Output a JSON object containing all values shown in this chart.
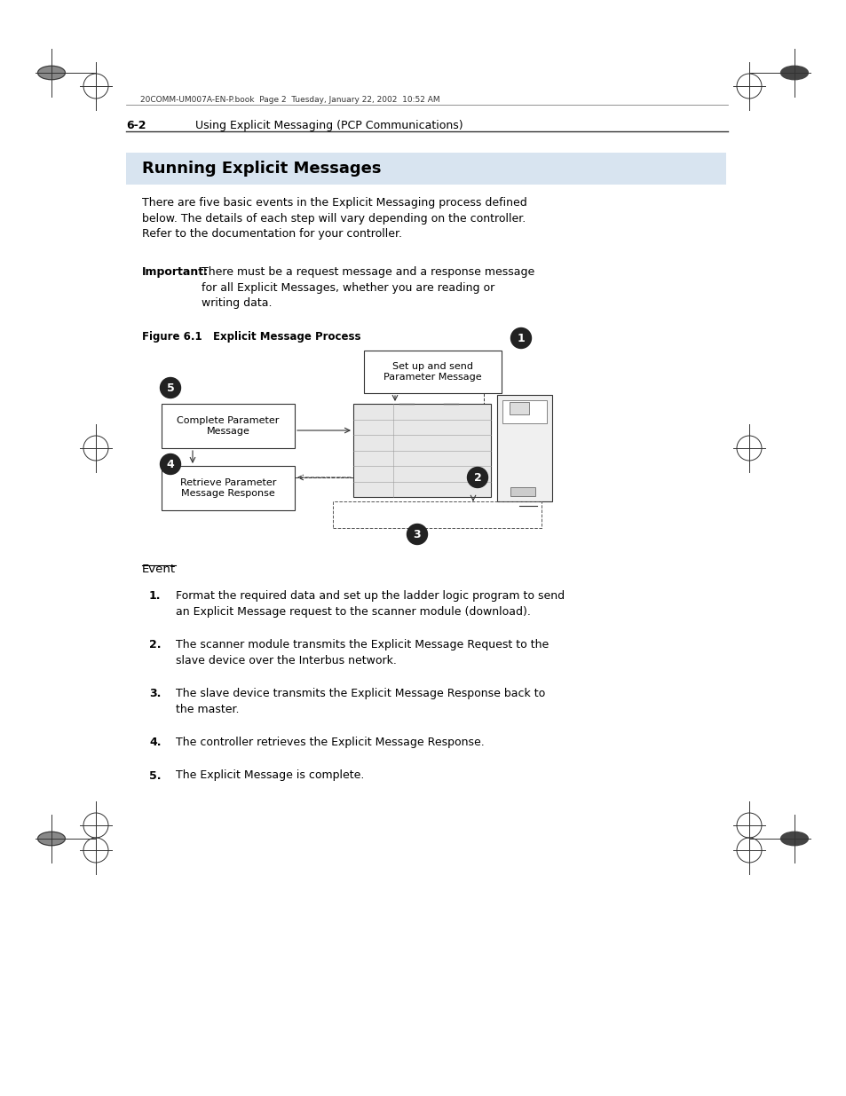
{
  "bg_color": "#ffffff",
  "page_header_text": "20COMM-UM007A-EN-P.book  Page 2  Tuesday, January 22, 2002  10:52 AM",
  "section_num": "6-2",
  "section_title": "Using Explicit Messaging (PCP Communications)",
  "title": "Running Explicit Messages",
  "title_bg": "#d8e4f0",
  "body_text_lines": [
    "There are five basic events in the Explicit Messaging process defined",
    "below. The details of each step will vary depending on the controller.",
    "Refer to the documentation for your controller."
  ],
  "important_label": "Important:",
  "important_text_lines": [
    "There must be a request message and a response message",
    "for all Explicit Messages, whether you are reading or",
    "writing data."
  ],
  "figure_label": "Figure 6.1   Explicit Message Process",
  "event_label": "Event",
  "events": [
    [
      "Format the required data and set up the ladder logic program to send",
      "an Explicit Message request to the scanner module (download)."
    ],
    [
      "The scanner module transmits the Explicit Message Request to the",
      "slave device over the Interbus network."
    ],
    [
      "The slave device transmits the Explicit Message Response back to",
      "the master."
    ],
    [
      "The controller retrieves the Explicit Message Response."
    ],
    [
      "The Explicit Message is complete."
    ]
  ],
  "box1_label": "Set up and send\nParameter Message",
  "box5_label": "Complete Parameter\nMessage",
  "box4_label": "Retrieve Parameter\nMessage Response"
}
